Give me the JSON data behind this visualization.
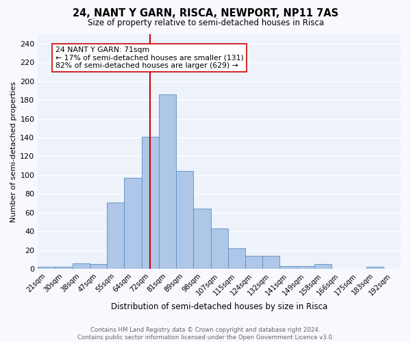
{
  "title": "24, NANT Y GARN, RISCA, NEWPORT, NP11 7AS",
  "subtitle": "Size of property relative to semi-detached houses in Risca",
  "xlabel": "Distribution of semi-detached houses by size in Risca",
  "ylabel": "Number of semi-detached properties",
  "bin_labels": [
    "21sqm",
    "30sqm",
    "38sqm",
    "47sqm",
    "55sqm",
    "64sqm",
    "72sqm",
    "81sqm",
    "89sqm",
    "98sqm",
    "107sqm",
    "115sqm",
    "124sqm",
    "132sqm",
    "141sqm",
    "149sqm",
    "158sqm",
    "166sqm",
    "175sqm",
    "183sqm",
    "192sqm"
  ],
  "bin_values": [
    2,
    2,
    6,
    5,
    71,
    97,
    141,
    186,
    104,
    64,
    43,
    22,
    14,
    14,
    3,
    3,
    5,
    0,
    0,
    2,
    0
  ],
  "bar_color": "#aec6e8",
  "bar_edge_color": "#5a8fc2",
  "vline_x_index": 6,
  "vline_color": "#cc0000",
  "annotation_text": "24 NANT Y GARN: 71sqm\n← 17% of semi-detached houses are smaller (131)\n82% of semi-detached houses are larger (629) →",
  "annotation_box_color": "#ffffff",
  "annotation_box_edge": "#cc0000",
  "ylim": [
    0,
    250
  ],
  "yticks": [
    0,
    20,
    40,
    60,
    80,
    100,
    120,
    140,
    160,
    180,
    200,
    220,
    240
  ],
  "bg_color": "#eef2fb",
  "grid_color": "#ffffff",
  "fig_bg_color": "#f8f9ff",
  "footer_line1": "Contains HM Land Registry data © Crown copyright and database right 2024.",
  "footer_line2": "Contains public sector information licensed under the Open Government Licence v3.0."
}
